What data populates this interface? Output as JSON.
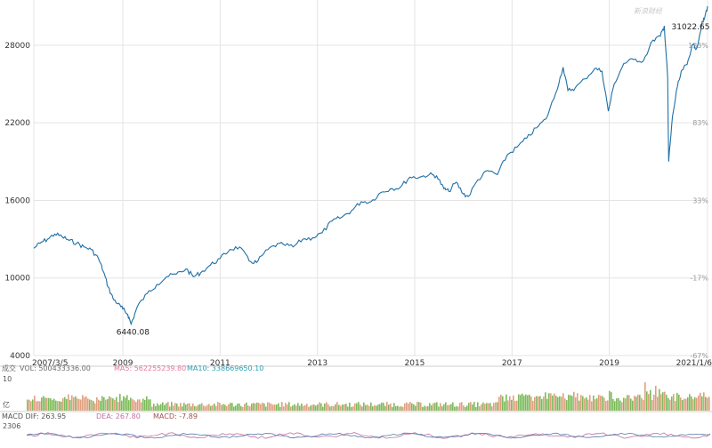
{
  "watermark": "新浪财经",
  "colors": {
    "line": "#1f6fa6",
    "grid": "#e4e4e4",
    "vol_label": "#6e6e6e",
    "ma5": "#e8799a",
    "ma10": "#2aa3b8",
    "dea": "#c070a0",
    "macd": "#a05050",
    "vol_green": "#7dba5b",
    "vol_red": "#e0a080"
  },
  "chart_data": {
    "type": "line",
    "title": "",
    "xlabel": "",
    "ylabel": "",
    "ylim": [
      4000,
      31500
    ],
    "yticks": [
      "4000",
      "10000",
      "16000",
      "22000",
      "28000"
    ],
    "right_ticks": [
      "-67%",
      "-17%",
      "33%",
      "83%",
      "133%"
    ],
    "x_ticks": [
      "2007/3/5",
      "2009",
      "2011",
      "2013",
      "2015",
      "2017",
      "2019",
      "2021/1/6"
    ],
    "xlim": [
      2007.17,
      2021.02
    ],
    "series": [
      {
        "name": "",
        "x": [
          2007.17,
          2007.3,
          2007.45,
          2007.6,
          2007.75,
          2007.9,
          2008.05,
          2008.2,
          2008.35,
          2008.5,
          2008.6,
          2008.7,
          2008.8,
          2008.9,
          2009.0,
          2009.1,
          2009.17,
          2009.3,
          2009.5,
          2009.7,
          2009.9,
          2010.1,
          2010.3,
          2010.45,
          2010.6,
          2010.8,
          2011.0,
          2011.2,
          2011.4,
          2011.6,
          2011.75,
          2011.9,
          2012.1,
          2012.3,
          2012.5,
          2012.7,
          2012.9,
          2013.1,
          2013.3,
          2013.5,
          2013.7,
          2013.9,
          2014.1,
          2014.3,
          2014.5,
          2014.7,
          2014.9,
          2015.1,
          2015.3,
          2015.45,
          2015.6,
          2015.7,
          2015.85,
          2016.0,
          2016.1,
          2016.3,
          2016.5,
          2016.7,
          2016.9,
          2017.1,
          2017.3,
          2017.5,
          2017.7,
          2017.9,
          2018.05,
          2018.15,
          2018.3,
          2018.5,
          2018.7,
          2018.85,
          2018.98,
          2019.1,
          2019.3,
          2019.5,
          2019.7,
          2019.9,
          2020.05,
          2020.13,
          2020.2,
          2020.22,
          2020.3,
          2020.4,
          2020.5,
          2020.6,
          2020.7,
          2020.8,
          2020.9,
          2020.95,
          2021.02
        ],
        "y": [
          12300,
          12700,
          13000,
          13400,
          13200,
          12900,
          12700,
          12400,
          12200,
          11500,
          10500,
          9300,
          8400,
          8000,
          7600,
          7200,
          6440,
          7800,
          8800,
          9500,
          10100,
          10300,
          10700,
          10100,
          10400,
          11000,
          11500,
          12200,
          12400,
          11300,
          11200,
          11900,
          12500,
          12600,
          12400,
          13000,
          13100,
          13500,
          14400,
          14700,
          15200,
          15900,
          15900,
          16600,
          16900,
          17000,
          17800,
          17800,
          18000,
          17900,
          16900,
          16700,
          17400,
          16500,
          16300,
          17600,
          18300,
          18000,
          19500,
          20100,
          20800,
          21600,
          22300,
          24300,
          26300,
          24500,
          24700,
          25400,
          26200,
          26000,
          22900,
          25000,
          26600,
          26900,
          26800,
          28400,
          28700,
          29500,
          25500,
          19000,
          22500,
          24800,
          26100,
          26500,
          28000,
          27800,
          29600,
          30000,
          31022.65
        ]
      }
    ],
    "annotations": [
      {
        "label": "6440.08",
        "x": 2009.17,
        "y": 6440.08
      },
      {
        "label": "31022.65",
        "x": 2021.02,
        "y": 31022.65
      }
    ]
  },
  "volume_legend": {
    "label": "成交",
    "vol": "VOL: 500433336.00",
    "ma5": "MA5: 562255239.80",
    "ma10": "MA10: 338669650.10",
    "axis_top": "10",
    "axis_mid": "亿"
  },
  "macd_legend": {
    "dif": "MACD  DIF: 263.95",
    "dea": "DEA: 267.80",
    "macd": "MACD: -7.89",
    "axis_top": "2306"
  }
}
